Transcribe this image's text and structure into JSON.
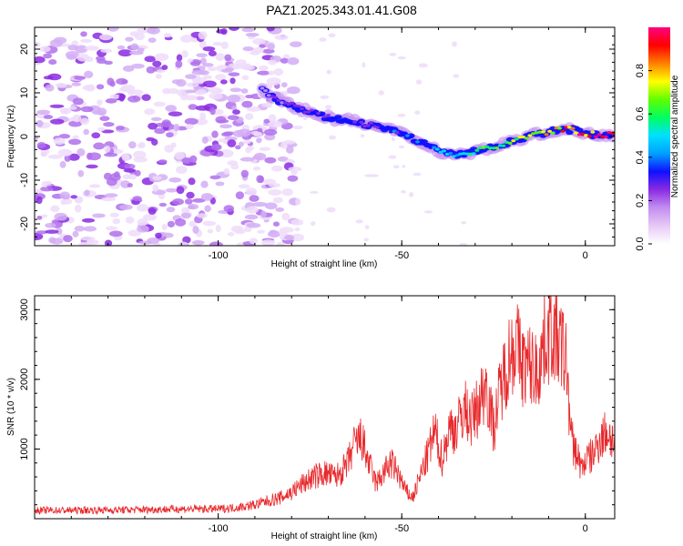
{
  "title": "PAZ1.2025.343.01.41.G08",
  "chart_data": [
    {
      "type": "heatmap",
      "name": "spectrogram",
      "xlabel": "Height of straight line (km)",
      "ylabel": "Frequency (Hz)",
      "xlim": [
        -150,
        8
      ],
      "ylim": [
        -25,
        25
      ],
      "xticks": [
        -100,
        -50,
        0
      ],
      "yticks": [
        -20,
        -10,
        0,
        10,
        20
      ],
      "colorbar": {
        "label": "Normalized spectral amplitude",
        "range": [
          0,
          1
        ],
        "ticks": [
          0.0,
          0.2,
          0.4,
          0.6,
          0.8
        ],
        "colormap": [
          "#ffffff",
          "#e7c9f5",
          "#c38ef0",
          "#8a2be2",
          "#1010ff",
          "#00a0ff",
          "#00e0ff",
          "#00ff60",
          "#60ff00",
          "#ffff00",
          "#ff8000",
          "#ff0000",
          "#ff0080"
        ]
      },
      "ridge": {
        "description": "dominant frequency of the signal vs height",
        "x": [
          -88,
          -83,
          -78,
          -73,
          -68,
          -63,
          -58,
          -53,
          -48,
          -43,
          -38,
          -33,
          -28,
          -23,
          -18,
          -13,
          -8,
          -3,
          0,
          3,
          8
        ],
        "y": [
          11,
          8,
          6.5,
          5,
          4,
          3.5,
          2.5,
          1.5,
          0,
          -2,
          -4,
          -4,
          -3,
          -2,
          -0.5,
          0.5,
          1.5,
          1.5,
          0.5,
          0.5,
          0.5
        ],
        "amplitude": [
          0.15,
          0.2,
          0.2,
          0.25,
          0.3,
          0.25,
          0.25,
          0.3,
          0.35,
          0.4,
          0.45,
          0.45,
          0.55,
          0.6,
          0.7,
          0.75,
          0.8,
          0.85,
          0.9,
          0.95,
          1.0
        ]
      },
      "noise_region": [
        -150,
        -80
      ]
    },
    {
      "type": "line",
      "name": "snr",
      "xlabel": "Height of straight line (km)",
      "ylabel": "SNR (10 * v/v)",
      "xlim": [
        -150,
        8
      ],
      "ylim": [
        0,
        3200
      ],
      "xticks": [
        -100,
        -50,
        0
      ],
      "yticks": [
        1000,
        2000,
        3000
      ],
      "color": "#e8282b",
      "series": {
        "x": [
          -150,
          -140,
          -130,
          -120,
          -110,
          -100,
          -95,
          -90,
          -86,
          -83,
          -80,
          -77,
          -74,
          -71,
          -68,
          -65,
          -63,
          -61,
          -59,
          -57,
          -55,
          -53,
          -51,
          -49,
          -47,
          -45,
          -43,
          -41,
          -39,
          -37,
          -35,
          -33,
          -31,
          -29,
          -27,
          -25,
          -23,
          -21,
          -19,
          -17,
          -15,
          -13,
          -11,
          -9,
          -7,
          -6,
          -5,
          -4,
          -3,
          -2,
          -1,
          0,
          2,
          4,
          6,
          8
        ],
        "y": [
          120,
          120,
          125,
          130,
          140,
          140,
          160,
          200,
          260,
          300,
          380,
          500,
          600,
          650,
          600,
          750,
          1050,
          1150,
          800,
          500,
          650,
          800,
          650,
          400,
          300,
          600,
          900,
          1250,
          850,
          1300,
          1300,
          1600,
          1400,
          1650,
          1950,
          1300,
          1900,
          2300,
          2550,
          2200,
          2200,
          2100,
          2600,
          2700,
          2500,
          2400,
          2200,
          1200,
          1000,
          900,
          700,
          850,
          900,
          1150,
          1250,
          1100
        ]
      }
    }
  ]
}
